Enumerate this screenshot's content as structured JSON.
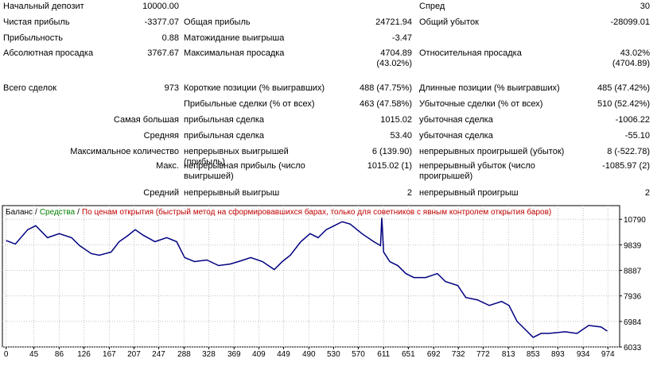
{
  "table": {
    "rows": [
      [
        "Начальный депозит",
        "10000.00",
        null,
        null,
        "Спред",
        "30"
      ],
      [
        "Чистая прибыль",
        "-3377.07",
        "Общая прибыль",
        "24721.94",
        "Общий убыток",
        "-28099.01"
      ],
      [
        "Прибыльность",
        "0.88",
        "Матожидание выигрыша",
        "-3.47",
        null,
        null
      ],
      [
        "Абсолютная просадка",
        "3767.67",
        "Максимальная просадка",
        [
          "4704.89",
          "(43.02%)"
        ],
        "Относительная просадка",
        [
          "43.02%",
          "(4704.89)"
        ]
      ],
      [
        "Всего сделок",
        "973",
        "Короткие позиции (% выигравших)",
        "488 (47.75%)",
        "Длинные позиции (% выигравших)",
        "485 (47.42%)"
      ],
      [
        null,
        null,
        "Прибыльные сделки (% от всех)",
        "463 (47.58%)",
        "Убыточные сделки (% от всех)",
        "510 (52.42%)"
      ],
      [
        null,
        "Самая большая",
        "прибыльная сделка",
        "1015.02",
        "убыточная сделка",
        "-1006.22"
      ],
      [
        null,
        "Средняя",
        "прибыльная сделка",
        "53.40",
        "убыточная сделка",
        "-55.10"
      ],
      [
        null,
        "Максимальное количество",
        "непрерывных выигрышей (прибыль)",
        "6 (139.90)",
        "непрерывных проигрышей (убыток)",
        "8 (-522.78)"
      ],
      [
        null,
        "Макс.",
        "непрерывная прибыль (число выигрышей)",
        "1015.02 (1)",
        "непрерывный убыток (число проигрышей)",
        "-1085.97 (2)"
      ],
      [
        null,
        "Средний",
        "непрерывный выигрыш",
        "2",
        "непрерывный проигрыш",
        "2"
      ]
    ]
  },
  "chart_data": {
    "type": "line",
    "legend": [
      {
        "text": "Баланс",
        "color": "#000000"
      },
      {
        "text": "Средства",
        "color": "#008000"
      },
      {
        "text": "По ценам открытия (быстрый метод на сформировавшихся барах, только для советников с явным контролем открытия баров)",
        "color": "#c00000"
      }
    ],
    "legend_separator": "/",
    "grid": true,
    "xlim": [
      -6,
      993
    ],
    "ylim": [
      6033,
      11300
    ],
    "xticks": [
      0,
      45,
      86,
      126,
      167,
      207,
      247,
      288,
      328,
      369,
      409,
      449,
      490,
      530,
      570,
      611,
      651,
      692,
      732,
      772,
      813,
      853,
      893,
      934,
      974
    ],
    "yticks": [
      6033,
      6984,
      7936,
      8887,
      9839,
      10790
    ],
    "series": [
      {
        "name": "Баланс",
        "color": "#000080",
        "x": [
          0,
          15,
          35,
          48,
          67,
          86,
          106,
          119,
          138,
          151,
          170,
          183,
          196,
          209,
          222,
          241,
          260,
          276,
          289,
          305,
          325,
          344,
          363,
          376,
          396,
          415,
          434,
          447,
          460,
          477,
          492,
          505,
          518,
          531,
          544,
          557,
          576,
          595,
          606,
          608,
          611,
          621,
          634,
          647,
          660,
          679,
          698,
          711,
          731,
          744,
          763,
          782,
          802,
          814,
          827,
          840,
          853,
          866,
          879,
          905,
          924,
          943,
          963,
          973
        ],
        "values": [
          10000,
          9868,
          10403,
          10552,
          10106,
          10255,
          10106,
          9809,
          9511,
          9452,
          9571,
          9957,
          10165,
          10403,
          10195,
          9957,
          10106,
          9957,
          9363,
          9214,
          9274,
          9065,
          9125,
          9214,
          9363,
          9214,
          8917,
          9214,
          9452,
          9957,
          10255,
          10106,
          10403,
          10552,
          10701,
          10611,
          10255,
          9957,
          9809,
          10849,
          9571,
          9214,
          9065,
          8768,
          8620,
          8620,
          8768,
          8471,
          8322,
          7876,
          7787,
          7579,
          7728,
          7579,
          6984,
          6687,
          6390,
          6538,
          6538,
          6598,
          6538,
          6836,
          6776,
          6623
        ]
      }
    ]
  }
}
